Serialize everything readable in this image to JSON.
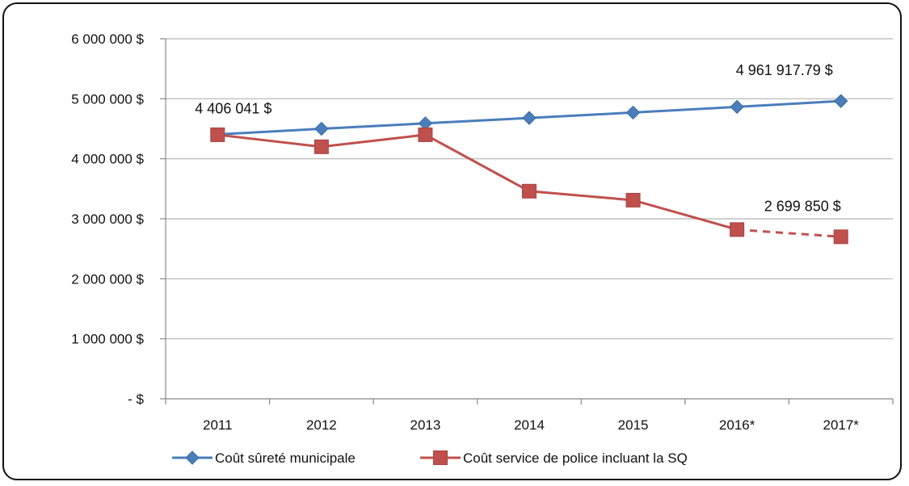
{
  "chart_data": {
    "type": "line",
    "categories": [
      "2011",
      "2012",
      "2013",
      "2014",
      "2015",
      "2016*",
      "2017*"
    ],
    "y_ticks": [
      "6 000 000 $",
      "5 000 000 $",
      "4 000 000 $",
      "3 000 000 $",
      "2 000 000 $",
      "1 000 000 $",
      "-  $"
    ],
    "y_tick_values": [
      6000000,
      5000000,
      4000000,
      3000000,
      2000000,
      1000000,
      0
    ],
    "ylim": [
      0,
      6000000
    ],
    "grid": "horizontal",
    "legend_position": "bottom-left",
    "series": [
      {
        "name": "Coût sûreté municipale",
        "color": "#4A7EBB",
        "marker": "diamond",
        "values": [
          4406041,
          4500000,
          4590000,
          4680000,
          4770000,
          4865000,
          4961917.79
        ]
      },
      {
        "name": "Coût service de police incluant la SQ",
        "color": "#C0504D",
        "marker": "square",
        "dashed_last_segment": true,
        "values": [
          4400000,
          4200000,
          4400000,
          3460000,
          3310000,
          2820000,
          2699850
        ]
      }
    ],
    "annotations": [
      {
        "text": "4 406 041  $",
        "series": 0,
        "index": 0
      },
      {
        "text": "4 961 917.79  $",
        "series": 0,
        "index": 6
      },
      {
        "text": "2 699 850  $",
        "series": 1,
        "index": 6
      }
    ]
  }
}
